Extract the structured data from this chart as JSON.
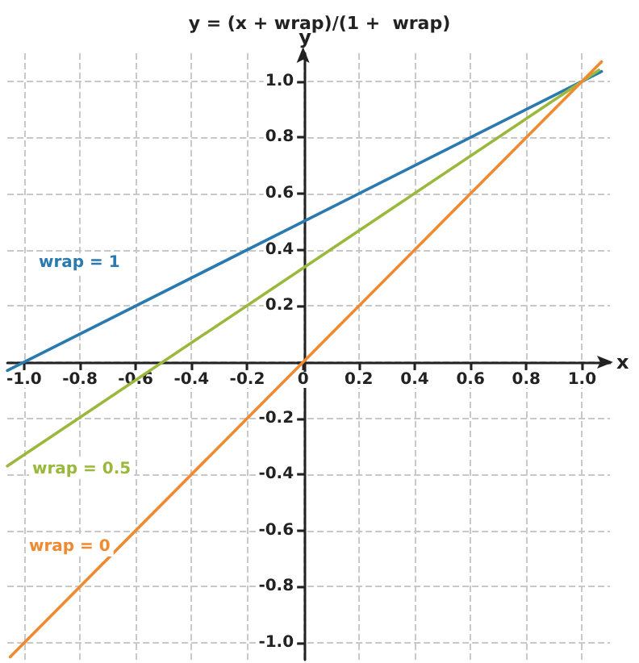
{
  "chart_data": {
    "type": "line",
    "title": "y = (x + wrap)/(1 +  wrap)",
    "xlabel": "x",
    "ylabel": "y",
    "xlim": [
      -1.06,
      1.1
    ],
    "ylim": [
      -1.06,
      1.1
    ],
    "xticks": [
      {
        "value": -1.0,
        "label": "-1.0"
      },
      {
        "value": -0.8,
        "label": "-0.8"
      },
      {
        "value": -0.6,
        "label": "-0.6"
      },
      {
        "value": -0.4,
        "label": "-0.4"
      },
      {
        "value": -0.2,
        "label": "-0.2"
      },
      0,
      {
        "value": 0.2,
        "label": "0.2"
      },
      {
        "value": 0.4,
        "label": "0.4"
      },
      {
        "value": 0.6,
        "label": "0.6"
      },
      {
        "value": 0.8,
        "label": "0.8"
      },
      {
        "value": 1.0,
        "label": "1.0"
      }
    ],
    "yticks": [
      {
        "value": -1.0,
        "label": "-1.0"
      },
      {
        "value": -0.8,
        "label": "-0.8"
      },
      {
        "value": -0.6,
        "label": "-0.6"
      },
      {
        "value": -0.4,
        "label": "-0.4"
      },
      {
        "value": -0.2,
        "label": "-0.2"
      },
      {
        "value": 0,
        "label": null
      },
      {
        "value": 0.2,
        "label": "0.2"
      },
      {
        "value": 0.4,
        "label": "0.4"
      },
      {
        "value": 0.6,
        "label": "0.6"
      },
      {
        "value": 0.8,
        "label": "0.8"
      },
      {
        "value": 1.0,
        "label": "1.0"
      }
    ],
    "grid": true,
    "marker": "none",
    "line_style": "solid",
    "series": [
      {
        "name": "wrap = 1",
        "color": "#2a7ab0",
        "x": [
          -1.06,
          1.07
        ],
        "values": [
          -0.03,
          1.035
        ]
      },
      {
        "name": "wrap = 0.5",
        "color": "#9ab83c",
        "x": [
          -1.06,
          1.06
        ],
        "values": [
          -0.37,
          1.04
        ]
      },
      {
        "name": "wrap = 0",
        "color": "#f08a30",
        "x": [
          -1.05,
          1.07
        ],
        "values": [
          -1.05,
          1.07
        ]
      }
    ]
  }
}
